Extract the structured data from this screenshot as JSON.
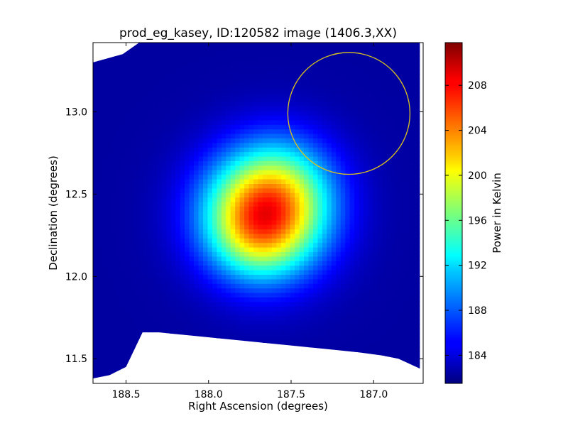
{
  "chart_data": {
    "type": "heatmap",
    "title": "prod_eg_kasey, ID:120582 image (1406.3,XX)",
    "xlabel": "Right Ascension (degrees)",
    "ylabel": "Declination (degrees)",
    "xlim": [
      188.7,
      186.7
    ],
    "ylim": [
      11.35,
      13.42
    ],
    "x_ticks": [
      {
        "value": 188.5,
        "label": "188.5"
      },
      {
        "value": 188.0,
        "label": "188.0"
      },
      {
        "value": 187.5,
        "label": "187.5"
      },
      {
        "value": 187.0,
        "label": "187.0"
      }
    ],
    "y_ticks": [
      {
        "value": 11.5,
        "label": "11.5"
      },
      {
        "value": 12.0,
        "label": "12.0"
      },
      {
        "value": 12.5,
        "label": "12.5"
      },
      {
        "value": 13.0,
        "label": "13.0"
      }
    ],
    "colormap": "jet",
    "colorbar": {
      "label": "Power in Kelvin",
      "range": [
        181.5,
        211.8
      ],
      "ticks": [
        {
          "value": 184,
          "label": "184"
        },
        {
          "value": 188,
          "label": "188"
        },
        {
          "value": 192,
          "label": "192"
        },
        {
          "value": 196,
          "label": "196"
        },
        {
          "value": 200,
          "label": "200"
        },
        {
          "value": 204,
          "label": "204"
        },
        {
          "value": 208,
          "label": "208"
        }
      ]
    },
    "background_level": 182.5,
    "peak": {
      "ra": 187.66,
      "dec": 12.38,
      "value": 211.5
    },
    "blob_components": [
      {
        "ra": 187.66,
        "dec": 12.38,
        "amplitude": 22.0,
        "sigma": 0.26
      },
      {
        "ra": 187.52,
        "dec": 12.58,
        "amplitude": 4.0,
        "sigma": 0.22
      },
      {
        "ra": 187.72,
        "dec": 12.24,
        "amplitude": 3.0,
        "sigma": 0.18
      }
    ],
    "data_footprint": [
      [
        188.7,
        13.3
      ],
      [
        188.52,
        13.35
      ],
      [
        188.42,
        13.42
      ],
      [
        186.72,
        13.42
      ],
      [
        186.72,
        11.44
      ],
      [
        186.85,
        11.5
      ],
      [
        186.95,
        11.52
      ],
      [
        187.1,
        11.54
      ],
      [
        187.3,
        11.56
      ],
      [
        187.5,
        11.58
      ],
      [
        187.7,
        11.6
      ],
      [
        187.9,
        11.62
      ],
      [
        188.1,
        11.64
      ],
      [
        188.3,
        11.66
      ],
      [
        188.4,
        11.66
      ],
      [
        188.5,
        11.45
      ],
      [
        188.6,
        11.4
      ],
      [
        188.7,
        11.38
      ]
    ],
    "beam_circle": {
      "ra": 187.15,
      "dec": 12.99,
      "radius_ra": 0.37,
      "radius_dec": 0.37,
      "color": "#d9c21f"
    },
    "grid": false,
    "legend": "none"
  }
}
